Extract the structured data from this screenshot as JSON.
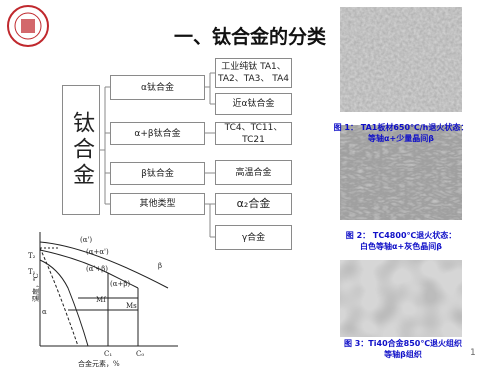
{
  "header": {
    "title": "一、钛合金的分类"
  },
  "tree": {
    "root": "钛合金",
    "level1": [
      "α钛合金",
      "α+β钛合金",
      "β钛合金",
      "其他类型"
    ],
    "level2": [
      [
        "工业纯钛 TA1、",
        "TA2、TA3、 TA4"
      ],
      [
        "近α钛合金"
      ],
      [
        "TC4、TC11、TC21"
      ],
      [
        "高温合金"
      ],
      [
        "α₂合金"
      ],
      [
        "γ合金"
      ]
    ]
  },
  "figures": [
    {
      "caption": [
        "图 1：  TA1板材650℃/h退火状态：",
        "等轴α+少量晶间β"
      ]
    },
    {
      "caption": [
        "图 2：  TC4800℃退火状态：",
        "白色等轴α+灰色晶间β"
      ]
    },
    {
      "caption": [
        "图 3：Ti40合金850℃退火组织",
        "等轴β组织"
      ]
    }
  ],
  "phase_diagram": {
    "y_label": "温度，℃",
    "x_label": "合金元素，%",
    "labels": [
      "(α')",
      "(α+α')",
      "(α'+β)",
      "(α+β)",
      "T₂",
      "T₁",
      "α",
      "β",
      "Mf",
      "Ms",
      "C₁",
      "C₀"
    ]
  },
  "page": "1"
}
